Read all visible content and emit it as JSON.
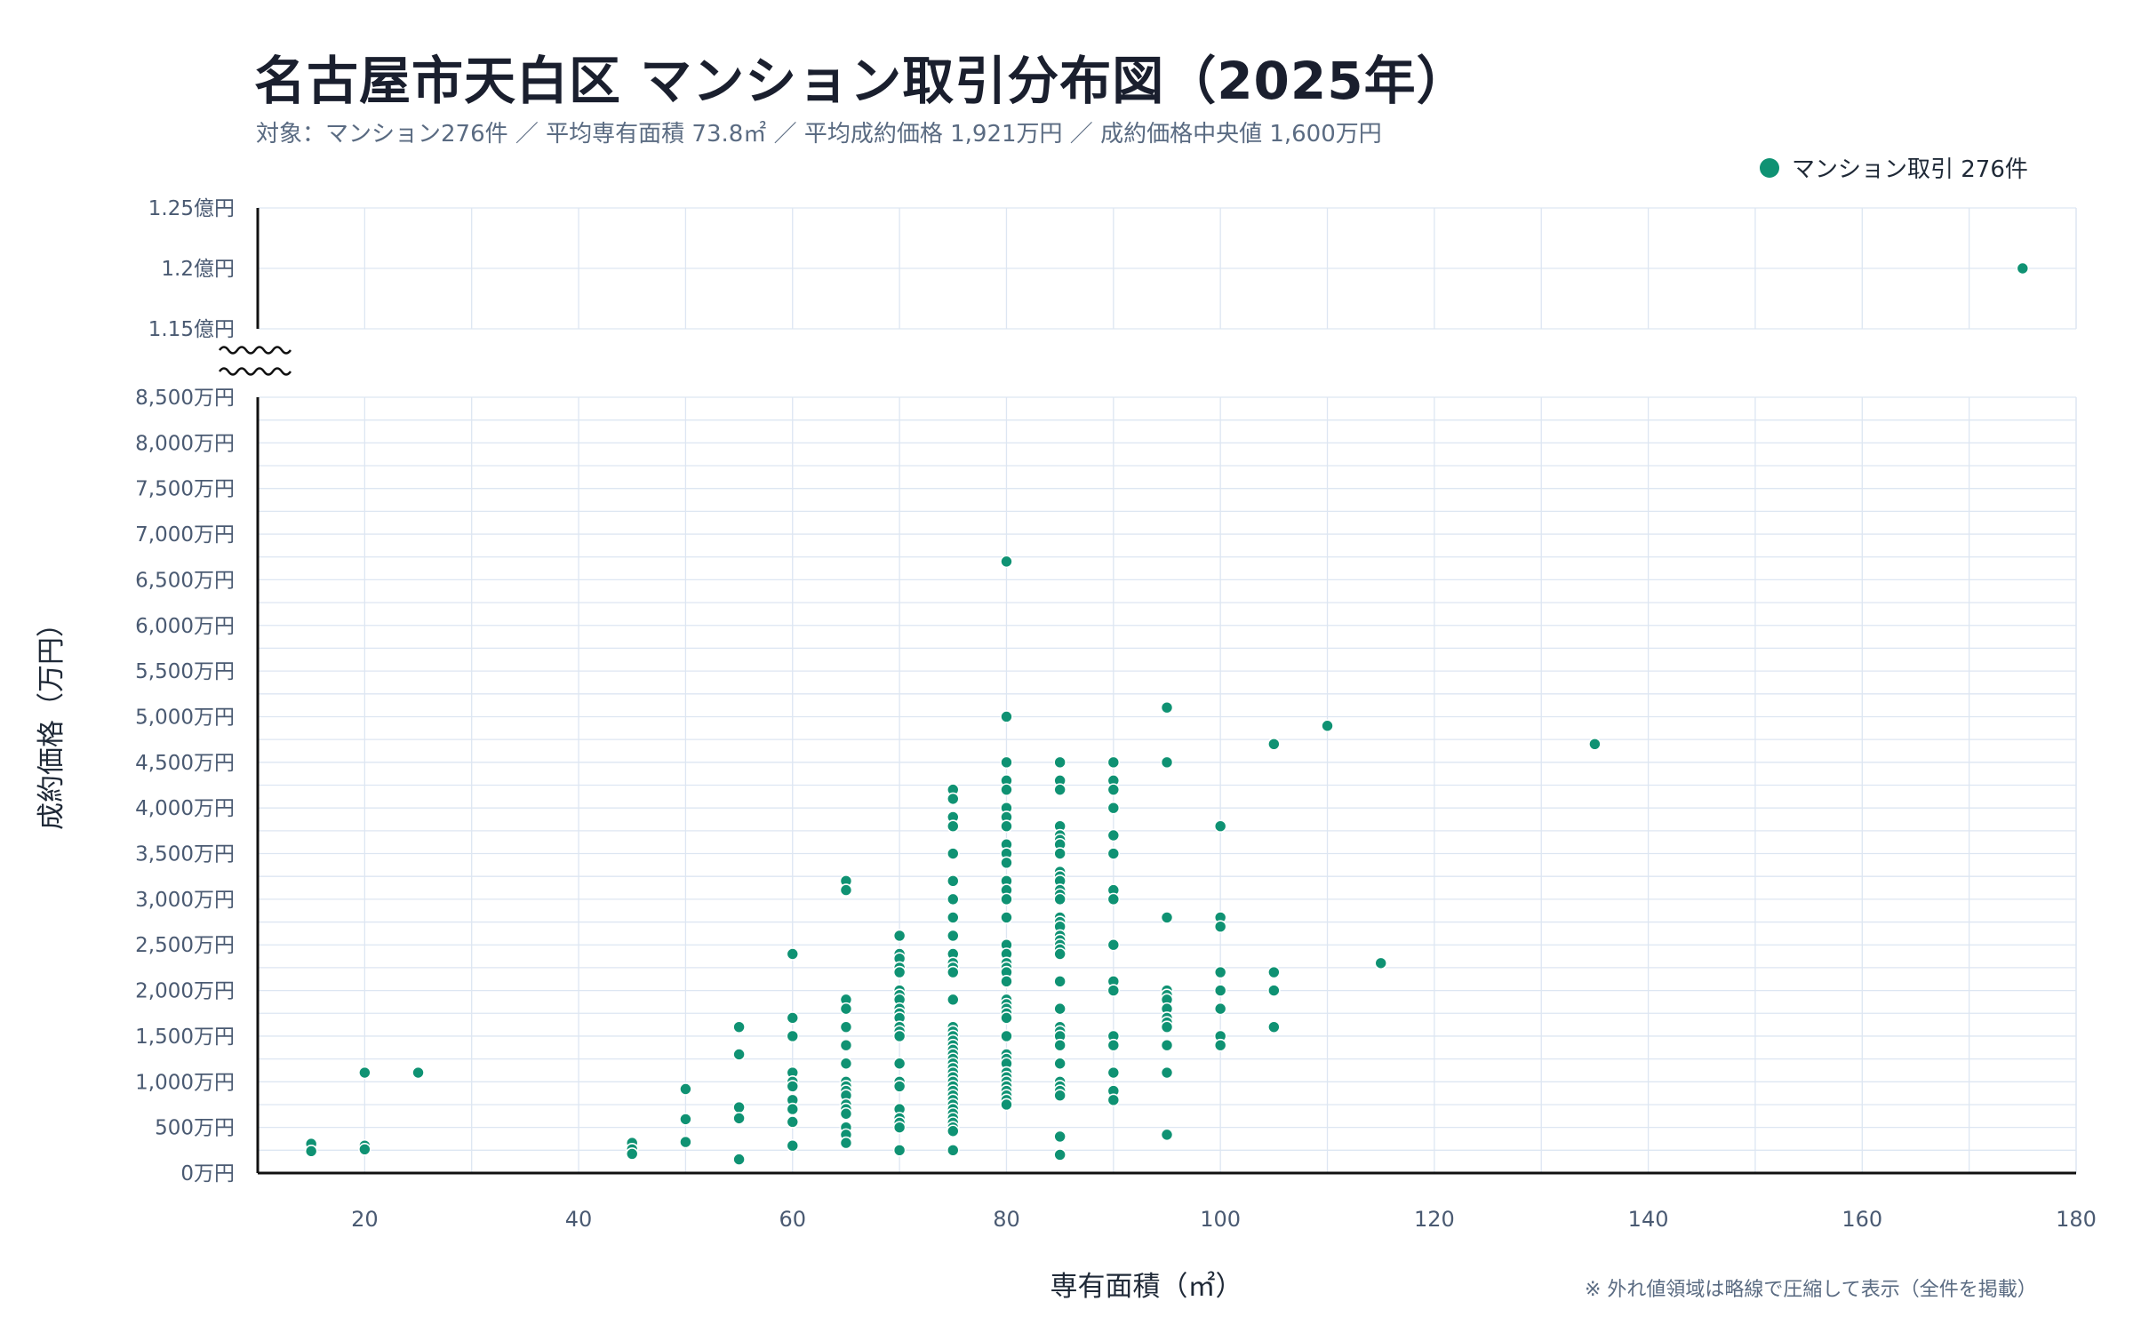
{
  "title": "名古屋市天白区 マンション取引分布図（2025年）",
  "subtitle": "対象：マンション276件 ／ 平均専有面積 73.8㎡ ／ 平均成約価格 1,921万円 ／ 成約価格中央値 1,600万円",
  "legend_label": "マンション取引 276件",
  "footnote": "※ 外れ値領域は略線で圧縮して表示（全件を掲載）",
  "colors": {
    "point": "#0f9273",
    "grid": "#dde6f2",
    "axis": "#111111",
    "text": "#4a5a72"
  },
  "chart_data": {
    "type": "scatter",
    "title": "名古屋市天白区 マンション取引分布図（2025年）",
    "xlabel": "専有面積（㎡）",
    "ylabel": "成約価格（万円）",
    "xlim": [
      10,
      180
    ],
    "ylim_lower": [
      0,
      8500
    ],
    "ylim_upper": [
      11500,
      12500
    ],
    "grid": true,
    "legend_position": "top-right",
    "axis_break": true,
    "x_ticks": [
      "20",
      "40",
      "60",
      "80",
      "100",
      "120",
      "140",
      "160",
      "180"
    ],
    "y_ticks_lower": [
      "0万円",
      "500万円",
      "1,000万円",
      "1,500万円",
      "2,000万円",
      "2,500万円",
      "3,000万円",
      "3,500万円",
      "4,000万円",
      "4,500万円",
      "5,000万円",
      "5,500万円",
      "6,000万円",
      "6,500万円",
      "7,000万円",
      "7,500万円",
      "8,000万円",
      "8,500万円"
    ],
    "y_ticks_upper": [
      "1.15億円",
      "1.2億円",
      "1.25億円"
    ],
    "series": [
      {
        "name": "マンション取引 276件",
        "points": [
          [
            15,
            320
          ],
          [
            15,
            240
          ],
          [
            20,
            1100
          ],
          [
            20,
            300
          ],
          [
            20,
            260
          ],
          [
            25,
            1100
          ],
          [
            45,
            330
          ],
          [
            45,
            260
          ],
          [
            45,
            210
          ],
          [
            50,
            920
          ],
          [
            50,
            590
          ],
          [
            50,
            340
          ],
          [
            55,
            1600
          ],
          [
            55,
            1300
          ],
          [
            55,
            720
          ],
          [
            55,
            600
          ],
          [
            55,
            150
          ],
          [
            60,
            2400
          ],
          [
            60,
            1700
          ],
          [
            60,
            1500
          ],
          [
            60,
            1100
          ],
          [
            60,
            1000
          ],
          [
            60,
            950
          ],
          [
            60,
            800
          ],
          [
            60,
            700
          ],
          [
            60,
            560
          ],
          [
            60,
            300
          ],
          [
            65,
            3200
          ],
          [
            65,
            3100
          ],
          [
            65,
            1900
          ],
          [
            65,
            1800
          ],
          [
            65,
            1600
          ],
          [
            65,
            1400
          ],
          [
            65,
            1200
          ],
          [
            65,
            1000
          ],
          [
            65,
            950
          ],
          [
            65,
            900
          ],
          [
            65,
            850
          ],
          [
            65,
            750
          ],
          [
            65,
            700
          ],
          [
            65,
            650
          ],
          [
            65,
            500
          ],
          [
            65,
            420
          ],
          [
            65,
            330
          ],
          [
            70,
            2600
          ],
          [
            70,
            2400
          ],
          [
            70,
            2350
          ],
          [
            70,
            2250
          ],
          [
            70,
            2200
          ],
          [
            70,
            2000
          ],
          [
            70,
            1950
          ],
          [
            70,
            1900
          ],
          [
            70,
            1800
          ],
          [
            70,
            1750
          ],
          [
            70,
            1700
          ],
          [
            70,
            1600
          ],
          [
            70,
            1550
          ],
          [
            70,
            1500
          ],
          [
            70,
            1200
          ],
          [
            70,
            1000
          ],
          [
            70,
            950
          ],
          [
            70,
            700
          ],
          [
            70,
            600
          ],
          [
            70,
            550
          ],
          [
            70,
            500
          ],
          [
            70,
            250
          ],
          [
            75,
            4200
          ],
          [
            75,
            4100
          ],
          [
            75,
            3900
          ],
          [
            75,
            3800
          ],
          [
            75,
            3500
          ],
          [
            75,
            3200
          ],
          [
            75,
            3000
          ],
          [
            75,
            2800
          ],
          [
            75,
            2600
          ],
          [
            75,
            2400
          ],
          [
            75,
            2300
          ],
          [
            75,
            2250
          ],
          [
            75,
            2200
          ],
          [
            75,
            1900
          ],
          [
            75,
            1600
          ],
          [
            75,
            1550
          ],
          [
            75,
            1500
          ],
          [
            75,
            1450
          ],
          [
            75,
            1400
          ],
          [
            75,
            1350
          ],
          [
            75,
            1300
          ],
          [
            75,
            1250
          ],
          [
            75,
            1200
          ],
          [
            75,
            1150
          ],
          [
            75,
            1100
          ],
          [
            75,
            1050
          ],
          [
            75,
            1000
          ],
          [
            75,
            950
          ],
          [
            75,
            900
          ],
          [
            75,
            850
          ],
          [
            75,
            800
          ],
          [
            75,
            750
          ],
          [
            75,
            700
          ],
          [
            75,
            650
          ],
          [
            75,
            600
          ],
          [
            75,
            550
          ],
          [
            75,
            500
          ],
          [
            75,
            460
          ],
          [
            75,
            250
          ],
          [
            80,
            6700
          ],
          [
            80,
            5000
          ],
          [
            80,
            4500
          ],
          [
            80,
            4300
          ],
          [
            80,
            4200
          ],
          [
            80,
            4000
          ],
          [
            80,
            3900
          ],
          [
            80,
            3800
          ],
          [
            80,
            3600
          ],
          [
            80,
            3500
          ],
          [
            80,
            3400
          ],
          [
            80,
            3200
          ],
          [
            80,
            3100
          ],
          [
            80,
            3000
          ],
          [
            80,
            2800
          ],
          [
            80,
            2500
          ],
          [
            80,
            2400
          ],
          [
            80,
            2300
          ],
          [
            80,
            2250
          ],
          [
            80,
            2200
          ],
          [
            80,
            2100
          ],
          [
            80,
            1900
          ],
          [
            80,
            1850
          ],
          [
            80,
            1800
          ],
          [
            80,
            1750
          ],
          [
            80,
            1700
          ],
          [
            80,
            1500
          ],
          [
            80,
            1300
          ],
          [
            80,
            1250
          ],
          [
            80,
            1200
          ],
          [
            80,
            1100
          ],
          [
            80,
            1050
          ],
          [
            80,
            1000
          ],
          [
            80,
            950
          ],
          [
            80,
            900
          ],
          [
            80,
            850
          ],
          [
            80,
            800
          ],
          [
            80,
            750
          ],
          [
            85,
            4500
          ],
          [
            85,
            4300
          ],
          [
            85,
            4200
          ],
          [
            85,
            3800
          ],
          [
            85,
            3700
          ],
          [
            85,
            3650
          ],
          [
            85,
            3600
          ],
          [
            85,
            3500
          ],
          [
            85,
            3300
          ],
          [
            85,
            3250
          ],
          [
            85,
            3200
          ],
          [
            85,
            3100
          ],
          [
            85,
            3050
          ],
          [
            85,
            3000
          ],
          [
            85,
            2800
          ],
          [
            85,
            2750
          ],
          [
            85,
            2700
          ],
          [
            85,
            2600
          ],
          [
            85,
            2550
          ],
          [
            85,
            2500
          ],
          [
            85,
            2450
          ],
          [
            85,
            2400
          ],
          [
            85,
            2100
          ],
          [
            85,
            1800
          ],
          [
            85,
            1600
          ],
          [
            85,
            1550
          ],
          [
            85,
            1500
          ],
          [
            85,
            1400
          ],
          [
            85,
            1200
          ],
          [
            85,
            1000
          ],
          [
            85,
            950
          ],
          [
            85,
            900
          ],
          [
            85,
            850
          ],
          [
            85,
            400
          ],
          [
            85,
            200
          ],
          [
            90,
            4500
          ],
          [
            90,
            4300
          ],
          [
            90,
            4200
          ],
          [
            90,
            4000
          ],
          [
            90,
            3700
          ],
          [
            90,
            3500
          ],
          [
            90,
            3100
          ],
          [
            90,
            3000
          ],
          [
            90,
            2500
          ],
          [
            90,
            2100
          ],
          [
            90,
            2000
          ],
          [
            90,
            1500
          ],
          [
            90,
            1400
          ],
          [
            90,
            1100
          ],
          [
            90,
            900
          ],
          [
            90,
            800
          ],
          [
            95,
            5100
          ],
          [
            95,
            4500
          ],
          [
            95,
            2800
          ],
          [
            95,
            2000
          ],
          [
            95,
            1950
          ],
          [
            95,
            1900
          ],
          [
            95,
            1800
          ],
          [
            95,
            1700
          ],
          [
            95,
            1650
          ],
          [
            95,
            1600
          ],
          [
            95,
            1400
          ],
          [
            95,
            1100
          ],
          [
            95,
            420
          ],
          [
            100,
            3800
          ],
          [
            100,
            2800
          ],
          [
            100,
            2700
          ],
          [
            100,
            2200
          ],
          [
            100,
            2000
          ],
          [
            100,
            1800
          ],
          [
            100,
            1500
          ],
          [
            100,
            1400
          ],
          [
            105,
            4700
          ],
          [
            105,
            2200
          ],
          [
            105,
            2000
          ],
          [
            105,
            1600
          ],
          [
            110,
            4900
          ],
          [
            115,
            2300
          ],
          [
            135,
            4700
          ],
          [
            175,
            12000
          ]
        ]
      }
    ]
  }
}
